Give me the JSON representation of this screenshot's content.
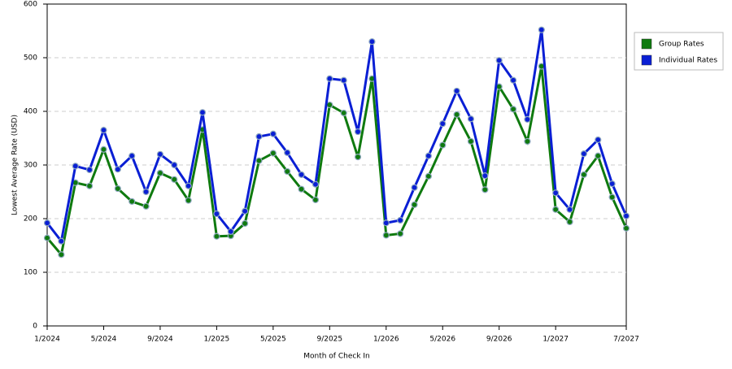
{
  "chart_data": {
    "type": "line",
    "ylabel": "Lowest Average Rate (USD)",
    "xlabel": "Month of Check In",
    "categories": [
      "1/2024",
      null,
      null,
      null,
      "5/2024",
      null,
      null,
      null,
      "9/2024",
      null,
      null,
      null,
      "1/2025",
      null,
      null,
      null,
      "5/2025",
      null,
      null,
      null,
      "9/2025",
      null,
      null,
      null,
      "1/2026",
      null,
      null,
      null,
      "5/2026",
      null,
      null,
      null,
      "9/2026",
      null,
      null,
      null,
      "1/2027",
      null,
      null,
      null,
      null,
      "7/2027"
    ],
    "series": [
      {
        "name": "Group Rates",
        "color": "#0f7a0f",
        "values": [
          164,
          133,
          267,
          261,
          329,
          256,
          232,
          223,
          285,
          273,
          234,
          366,
          167,
          168,
          191,
          308,
          322,
          288,
          255,
          235,
          412,
          397,
          315,
          461,
          169,
          172,
          226,
          279,
          337,
          394,
          344,
          254,
          446,
          404,
          344,
          484,
          217,
          194,
          282,
          317,
          240,
          182
        ]
      },
      {
        "name": "Individual Rates",
        "color": "#0a1fd4",
        "values": [
          192,
          158,
          298,
          291,
          365,
          292,
          317,
          250,
          320,
          300,
          261,
          398,
          209,
          176,
          214,
          353,
          358,
          323,
          282,
          264,
          461,
          458,
          362,
          530,
          192,
          197,
          258,
          317,
          377,
          438,
          386,
          280,
          495,
          458,
          385,
          552,
          248,
          217,
          321,
          347,
          265,
          205
        ]
      }
    ],
    "ylim": [
      0,
      600
    ],
    "yticks": [
      0,
      100,
      200,
      300,
      400,
      500,
      600
    ],
    "grid": true,
    "legend": "right"
  }
}
